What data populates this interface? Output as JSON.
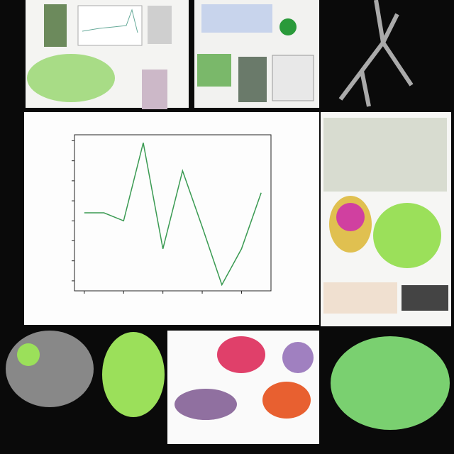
{
  "chart_data": {
    "type": "line",
    "x": [
      0,
      1,
      2,
      3,
      4,
      5,
      6,
      7,
      8,
      9
    ],
    "series": [
      {
        "color": "#3a9a52",
        "values": [
          3.4,
          3.4,
          3.0,
          6.9,
          1.6,
          5.5,
          2.7,
          -0.2,
          1.6,
          4.4
        ]
      }
    ],
    "xlim": [
      -0.5,
      9.5
    ],
    "xticks": [
      0,
      2,
      4,
      6,
      8
    ],
    "ylim": [
      -0.5,
      7.3
    ],
    "yticks": [
      0,
      1,
      2,
      3,
      4,
      5,
      6,
      7
    ]
  }
}
